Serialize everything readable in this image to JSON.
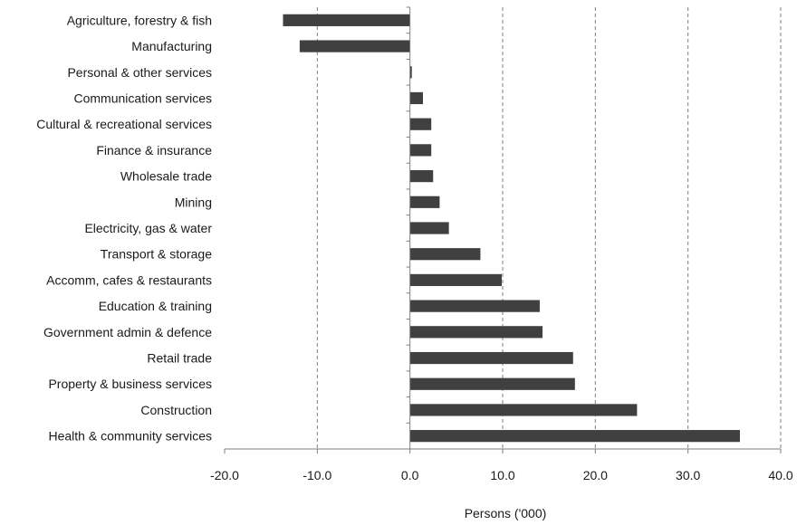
{
  "chart_data": {
    "type": "bar",
    "orientation": "horizontal",
    "categories": [
      "Agriculture, forestry & fish",
      "Manufacturing",
      "Personal & other services",
      "Communication services",
      "Cultural & recreational services",
      "Finance & insurance",
      "Wholesale trade",
      "Mining",
      "Electricity, gas & water",
      "Transport & storage",
      "Accomm, cafes & restaurants",
      "Education & training",
      "Government admin & defence",
      "Retail trade",
      "Property & business services",
      "Construction",
      "Health & community services"
    ],
    "values": [
      -13.7,
      -11.9,
      0.2,
      1.4,
      2.3,
      2.3,
      2.5,
      3.2,
      4.2,
      7.6,
      9.9,
      14.0,
      14.3,
      17.6,
      17.8,
      24.5,
      35.6
    ],
    "xlabel": "Persons ('000)",
    "ylabel": "",
    "title": "",
    "xlim": [
      -20,
      40
    ],
    "xticks": [
      -20,
      -10,
      0,
      10,
      20,
      30,
      40
    ],
    "xtick_labels": [
      "-20.0",
      "-10.0",
      "0.0",
      "10.0",
      "20.0",
      "30.0",
      "40.0"
    ],
    "grid": "vertical dashed",
    "bar_color": "#404040",
    "grid_color": "#7f7f7f",
    "axis_color": "#7f7f7f"
  }
}
